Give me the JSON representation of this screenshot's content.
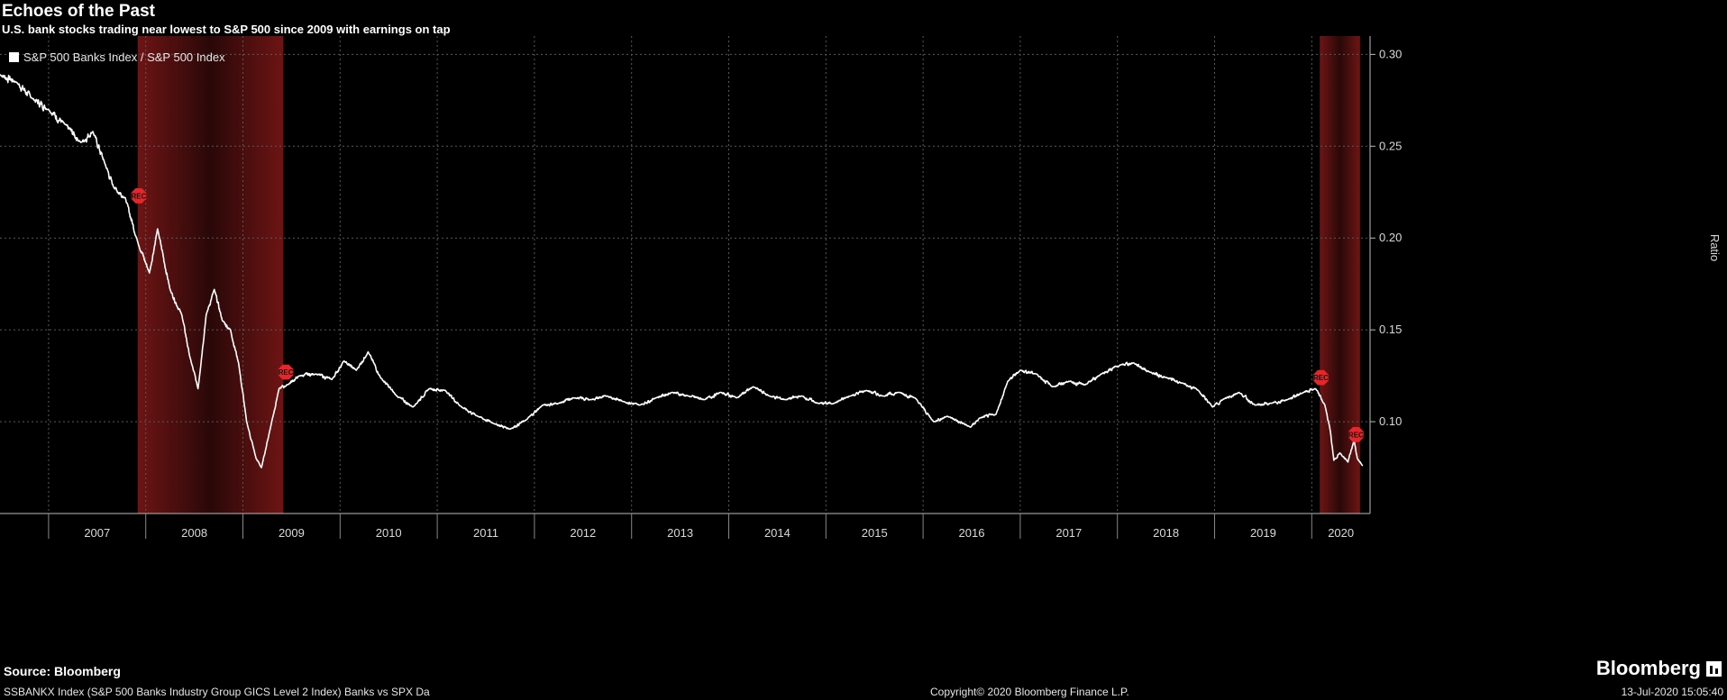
{
  "header": {
    "title": "Echoes of the Past",
    "subtitle": "U.S. bank stocks trading near lowest to S&P 500 since 2009 with earnings on tap"
  },
  "footer": {
    "source": "Source: Bloomberg",
    "description": "SSBANKX Index (S&P 500 Banks Industry Group GICS Level 2 Index) Banks vs SPX  Da",
    "copyright": "Copyright© 2020 Bloomberg Finance L.P.",
    "timestamp": "13-Jul-2020 15:05:40",
    "brand": "Bloomberg"
  },
  "chart_data": {
    "type": "line",
    "title": "Echoes of the Past",
    "subtitle": "U.S. bank stocks trading near lowest to S&P 500 since 2009 with earnings on tap",
    "ylabel": "Ratio",
    "ylim": [
      0.05,
      0.31
    ],
    "y_ticks": [
      "0.30",
      "0.25",
      "0.20",
      "0.15",
      "0.10"
    ],
    "x_ticks": [
      "2007",
      "2008",
      "2009",
      "2010",
      "2011",
      "2012",
      "2013",
      "2014",
      "2015",
      "2016",
      "2017",
      "2018",
      "2019",
      "2020"
    ],
    "grid": true,
    "legend_position": "top-left",
    "colors": {
      "background": "#000000",
      "line": "#ffffff",
      "recession": "#7a1818",
      "rec_marker": "#e8262a",
      "grid": "#555555"
    },
    "series": [
      {
        "name": "S&P 500 Banks Index / S&P 500 Index",
        "x": [
          "2006-07-01",
          "2006-09-01",
          "2006-11-01",
          "2007-01-01",
          "2007-03-01",
          "2007-05-01",
          "2007-06-15",
          "2007-08-01",
          "2007-09-01",
          "2007-10-15",
          "2007-12-01",
          "2008-01-15",
          "2008-02-15",
          "2008-04-01",
          "2008-05-15",
          "2008-06-15",
          "2008-07-15",
          "2008-08-15",
          "2008-09-15",
          "2008-10-15",
          "2008-11-15",
          "2008-12-15",
          "2009-01-15",
          "2009-02-20",
          "2009-03-10",
          "2009-04-15",
          "2009-05-15",
          "2009-06-15",
          "2009-08-01",
          "2009-10-01",
          "2009-12-01",
          "2010-01-15",
          "2010-03-01",
          "2010-04-15",
          "2010-06-01",
          "2010-08-01",
          "2010-10-01",
          "2010-12-01",
          "2011-02-01",
          "2011-04-01",
          "2011-06-01",
          "2011-08-01",
          "2011-10-01",
          "2011-12-01",
          "2012-02-01",
          "2012-04-01",
          "2012-06-01",
          "2012-08-01",
          "2012-10-01",
          "2012-12-01",
          "2013-02-01",
          "2013-04-01",
          "2013-06-01",
          "2013-08-01",
          "2013-10-01",
          "2013-12-01",
          "2014-02-01",
          "2014-04-01",
          "2014-06-01",
          "2014-08-01",
          "2014-10-01",
          "2014-12-01",
          "2015-02-01",
          "2015-04-01",
          "2015-06-01",
          "2015-08-01",
          "2015-10-01",
          "2015-12-01",
          "2016-02-10",
          "2016-04-01",
          "2016-06-27",
          "2016-08-01",
          "2016-10-01",
          "2016-11-15",
          "2017-01-01",
          "2017-03-01",
          "2017-05-01",
          "2017-07-01",
          "2017-09-01",
          "2017-11-01",
          "2018-01-15",
          "2018-03-01",
          "2018-05-01",
          "2018-07-01",
          "2018-09-01",
          "2018-11-01",
          "2018-12-24",
          "2019-02-01",
          "2019-04-01",
          "2019-06-01",
          "2019-08-01",
          "2019-10-01",
          "2019-12-01",
          "2020-01-15",
          "2020-02-20",
          "2020-03-10",
          "2020-03-23",
          "2020-04-15",
          "2020-05-15",
          "2020-06-08",
          "2020-06-20",
          "2020-07-10"
        ],
        "values": [
          0.289,
          0.285,
          0.276,
          0.27,
          0.262,
          0.252,
          0.258,
          0.24,
          0.228,
          0.222,
          0.198,
          0.181,
          0.205,
          0.172,
          0.158,
          0.135,
          0.118,
          0.158,
          0.172,
          0.155,
          0.15,
          0.132,
          0.1,
          0.08,
          0.075,
          0.098,
          0.118,
          0.12,
          0.125,
          0.126,
          0.123,
          0.133,
          0.128,
          0.138,
          0.124,
          0.114,
          0.108,
          0.118,
          0.117,
          0.108,
          0.103,
          0.099,
          0.096,
          0.101,
          0.109,
          0.11,
          0.113,
          0.112,
          0.114,
          0.111,
          0.109,
          0.113,
          0.116,
          0.114,
          0.112,
          0.116,
          0.113,
          0.119,
          0.114,
          0.112,
          0.114,
          0.11,
          0.11,
          0.114,
          0.117,
          0.114,
          0.116,
          0.113,
          0.1,
          0.103,
          0.097,
          0.102,
          0.104,
          0.122,
          0.128,
          0.126,
          0.119,
          0.122,
          0.12,
          0.126,
          0.131,
          0.132,
          0.127,
          0.124,
          0.121,
          0.117,
          0.108,
          0.112,
          0.116,
          0.109,
          0.11,
          0.112,
          0.116,
          0.118,
          0.109,
          0.095,
          0.079,
          0.083,
          0.078,
          0.09,
          0.08,
          0.076
        ]
      }
    ],
    "recessions": [
      {
        "start": "2007-12-01",
        "end": "2009-06-01"
      },
      {
        "start": "2020-02-01",
        "end": "2020-06-30"
      }
    ],
    "rec_markers": [
      {
        "date": "2007-12-05",
        "value": 0.223,
        "label": "REC"
      },
      {
        "date": "2009-06-10",
        "value": 0.127,
        "label": "REC"
      },
      {
        "date": "2020-02-05",
        "value": 0.124,
        "label": "REC"
      },
      {
        "date": "2020-06-15",
        "value": 0.093,
        "label": "REC"
      }
    ]
  }
}
